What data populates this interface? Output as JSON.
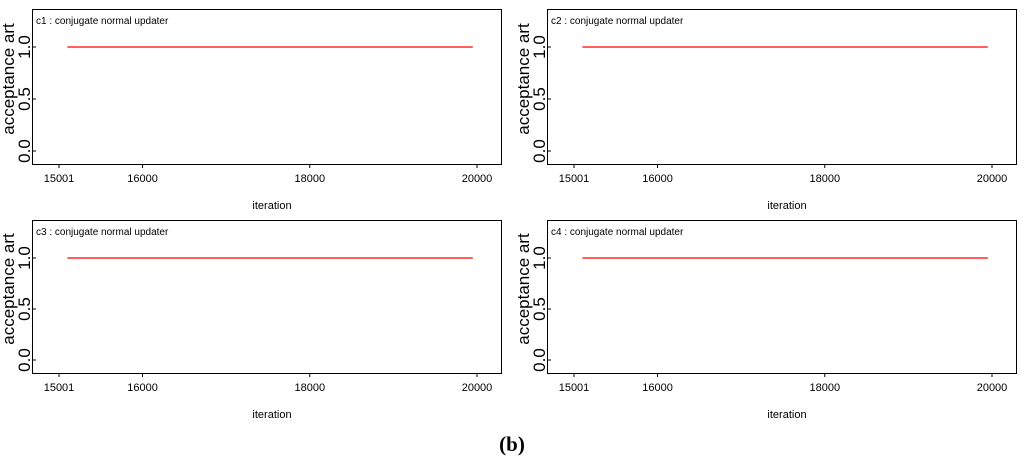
{
  "caption": "(b)",
  "chart_data": [
    {
      "type": "line",
      "title": "c1 : conjugate normal updater",
      "xlabel": "iteration",
      "ylabel": "acceptance art",
      "xlim": [
        15001,
        20000
      ],
      "ylim": [
        0.0,
        1.0
      ],
      "xticks": [
        15001,
        16000,
        18000,
        20000
      ],
      "yticks": [
        "0.0",
        "0.5",
        "1.0"
      ],
      "series": [
        {
          "color": "#ff0000",
          "x": [
            15101,
            19950
          ],
          "y": [
            1.0,
            1.0
          ]
        }
      ]
    },
    {
      "type": "line",
      "title": "c2 : conjugate normal updater",
      "xlabel": "iteration",
      "ylabel": "acceptance art",
      "xlim": [
        15001,
        20000
      ],
      "ylim": [
        0.0,
        1.0
      ],
      "xticks": [
        15001,
        16000,
        18000,
        20000
      ],
      "yticks": [
        "0.0",
        "0.5",
        "1.0"
      ],
      "series": [
        {
          "color": "#ff0000",
          "x": [
            15101,
            19950
          ],
          "y": [
            1.0,
            1.0
          ]
        }
      ]
    },
    {
      "type": "line",
      "title": "c3 : conjugate normal updater",
      "xlabel": "iteration",
      "ylabel": "acceptance art",
      "xlim": [
        15001,
        20000
      ],
      "ylim": [
        0.0,
        1.0
      ],
      "xticks": [
        15001,
        16000,
        18000,
        20000
      ],
      "yticks": [
        "0.0",
        "0.5",
        "1.0"
      ],
      "series": [
        {
          "color": "#ff0000",
          "x": [
            15101,
            19950
          ],
          "y": [
            1.0,
            1.0
          ]
        }
      ]
    },
    {
      "type": "line",
      "title": "c4 : conjugate normal updater",
      "xlabel": "iteration",
      "ylabel": "acceptance art",
      "xlim": [
        15001,
        20000
      ],
      "ylim": [
        0.0,
        1.0
      ],
      "xticks": [
        15001,
        16000,
        18000,
        20000
      ],
      "yticks": [
        "0.0",
        "0.5",
        "1.0"
      ],
      "series": [
        {
          "color": "#ff0000",
          "x": [
            15101,
            19950
          ],
          "y": [
            1.0,
            1.0
          ]
        }
      ]
    }
  ]
}
